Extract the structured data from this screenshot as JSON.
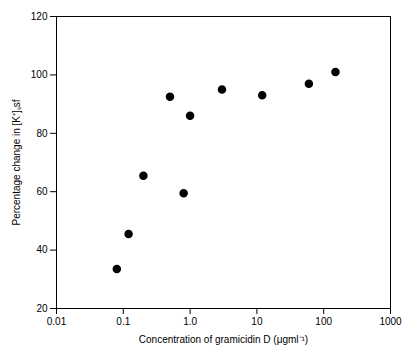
{
  "chart_data": {
    "type": "scatter",
    "x": [
      0.08,
      0.12,
      0.2,
      0.5,
      0.8,
      1.0,
      3.0,
      12.0,
      60.0,
      150.0
    ],
    "values": [
      33.5,
      45.5,
      65.5,
      92.5,
      59.5,
      86.0,
      95.0,
      93.0,
      97.0,
      101.0
    ],
    "xlabel": "Concentration of gramicidin D (μgml⁻¹)",
    "ylabel": "Percentage change in [K⁺]ₛsf",
    "log": "x",
    "xlim": [
      0.01,
      1000
    ],
    "xticks": [
      0.01,
      0.1,
      {
        "value": 1,
        "label": "1.0"
      },
      10,
      100,
      1000
    ],
    "ylim": [
      20,
      120
    ],
    "yticks": [
      20,
      40,
      60,
      80,
      100,
      120
    ],
    "color": "black",
    "marker": "circle",
    "grid": false
  }
}
